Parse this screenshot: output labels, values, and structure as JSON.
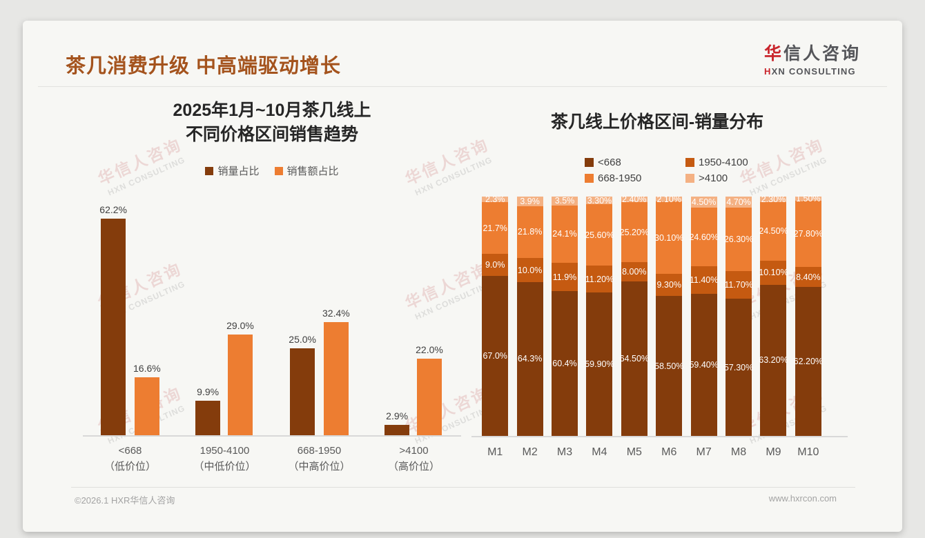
{
  "header": {
    "title": "茶几消费升级 中高端驱动增长"
  },
  "logo": {
    "cn_red": "华",
    "cn_rest": "信人咨询",
    "en_red": "H",
    "en_rest": "XN CONSULTING"
  },
  "watermark": {
    "cn": "华信人咨询",
    "en": "HXN CONSULTING"
  },
  "footer": {
    "left": "©2026.1 HXR华信人咨询",
    "right": "www.hxrcon.com"
  },
  "colors": {
    "title": "#A4531D",
    "logo_red": "#C9242B",
    "dark_brown": "#843C0C",
    "mid_brown": "#C55A11",
    "orange": "#ED7D31",
    "light_orange": "#F4B183",
    "axis": "#D8D8D8"
  },
  "left_chart": {
    "title_line1": "2025年1月~10月茶几线上",
    "title_line2": "不同价格区间销售趋势"
  },
  "right_chart": {
    "title": "茶几线上价格区间-销量分布"
  },
  "chart_data": [
    {
      "type": "bar",
      "title": "2025年1月~10月茶几线上 不同价格区间销售趋势",
      "categories": [
        "<668\n（低价位）",
        "1950-4100\n（中低价位）",
        "668-1950\n（中高价位）",
        ">4100\n（高价位）"
      ],
      "series": [
        {
          "name": "销量占比",
          "color": "#843C0C",
          "values": [
            62.2,
            9.9,
            25.0,
            2.9
          ],
          "labels": [
            "62.2%",
            "9.9%",
            "25.0%",
            "2.9%"
          ]
        },
        {
          "name": "销售额占比",
          "color": "#ED7D31",
          "values": [
            16.6,
            29.0,
            32.4,
            22.0
          ],
          "labels": [
            "16.6%",
            "29.0%",
            "32.4%",
            "22.0%"
          ]
        }
      ],
      "xlabel": "",
      "ylabel": "",
      "ylim": [
        0,
        70
      ],
      "grid": false,
      "legend_position": "top"
    },
    {
      "type": "bar",
      "stacked": true,
      "title": "茶几线上价格区间-销量分布",
      "categories": [
        "M1",
        "M2",
        "M3",
        "M4",
        "M5",
        "M6",
        "M7",
        "M8",
        "M9",
        "M10"
      ],
      "series": [
        {
          "name": "<668",
          "color": "#843C0C",
          "values": [
            67.0,
            64.3,
            60.4,
            59.9,
            64.5,
            58.5,
            59.4,
            57.3,
            63.2,
            62.2
          ],
          "labels": [
            "67.0%",
            "64.3%",
            "60.4%",
            "59.90%",
            "64.50%",
            "58.50%",
            "59.40%",
            "57.30%",
            "63.20%",
            "62.20%"
          ]
        },
        {
          "name": "1950-4100",
          "color": "#C55A11",
          "values": [
            9.0,
            10.0,
            11.9,
            11.2,
            8.0,
            9.3,
            11.4,
            11.7,
            10.1,
            8.4
          ],
          "labels": [
            "9.0%",
            "10.0%",
            "11.9%",
            "11.20%",
            "8.00%",
            "9.30%",
            "11.40%",
            "11.70%",
            "10.10%",
            "8.40%"
          ]
        },
        {
          "name": "668-1950",
          "color": "#ED7D31",
          "values": [
            21.7,
            21.8,
            24.1,
            25.6,
            25.2,
            30.1,
            24.6,
            26.3,
            24.5,
            27.8
          ],
          "labels": [
            "21.7%",
            "21.8%",
            "24.1%",
            "25.60%",
            "25.20%",
            "30.10%",
            "24.60%",
            "26.30%",
            "24.50%",
            "27.80%"
          ]
        },
        {
          "name": ">4100",
          "color": "#F4B183",
          "values": [
            2.3,
            3.9,
            3.5,
            3.3,
            2.4,
            2.1,
            4.5,
            4.7,
            2.3,
            1.5
          ],
          "labels": [
            "2.3%",
            "3.9%",
            "3.5%",
            "3.30%",
            "2.40%",
            "2.10%",
            "4.50%",
            "4.70%",
            "2.30%",
            "1.50%"
          ]
        }
      ],
      "legend_order": [
        "<668",
        "1950-4100",
        "668-1950",
        ">4100"
      ],
      "xlabel": "",
      "ylabel": "",
      "ylim": [
        0,
        100
      ],
      "grid": false,
      "legend_position": "top"
    }
  ]
}
